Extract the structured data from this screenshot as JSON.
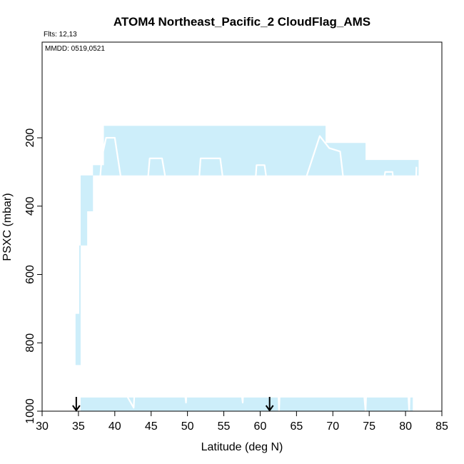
{
  "chart_data": {
    "type": "area",
    "title": "ATOM4 Northeast_Pacific_2 CloudFlag_AMS",
    "annotations": {
      "flights": "Flts: 12,13",
      "dates": "MMDD: 0519,0521"
    },
    "xlabel": "Latitude (deg N)",
    "ylabel": "PSXC (mbar)",
    "xlim": [
      30,
      85
    ],
    "ylim": [
      1000,
      -80
    ],
    "y_reversed": true,
    "grid": false,
    "x_ticks": [
      30,
      35,
      40,
      45,
      50,
      55,
      60,
      65,
      70,
      75,
      80,
      85
    ],
    "x_tick_labels": [
      "30",
      "35",
      "40",
      "45",
      "50",
      "55",
      "60",
      "65",
      "70",
      "75",
      "80",
      "85"
    ],
    "y_ticks": [
      200,
      400,
      600,
      800,
      1000
    ],
    "y_tick_labels": [
      "200",
      "400",
      "600",
      "800",
      "1000"
    ],
    "colors": {
      "cloud_fill": "#cdeefa",
      "flight_track": "#ffffff",
      "axis": "#000000"
    },
    "cloud_region": {
      "x": [
        34.6,
        35.1,
        35.1,
        36.2,
        36.2,
        37.0,
        37.0,
        38.5,
        38.5,
        69.0,
        69.0,
        74.5,
        74.5,
        81.8,
        81.8,
        35.3,
        35.3,
        34.6
      ],
      "y": [
        715,
        715,
        515,
        515,
        415,
        415,
        280,
        280,
        165,
        165,
        215,
        215,
        265,
        265,
        310,
        310,
        865,
        865
      ],
      "note_bottom": 1000
    },
    "flight_track": {
      "x": [
        35.0,
        36.0,
        37.2,
        38.2,
        38.8,
        40.0,
        41.0,
        41.8,
        42.6,
        43.6,
        44.8,
        46.5,
        47.8,
        48.8,
        49.8,
        50.8,
        51.8,
        54.5,
        55.5,
        56.6,
        57.6,
        58.6,
        59.5,
        60.6,
        61.6,
        62.6,
        63.5,
        68.2,
        69.5,
        71.0,
        72.0,
        73.4,
        74.5,
        75.3,
        77.2,
        78.2,
        79.2,
        80.5,
        81.5
      ],
      "y": [
        960,
        780,
        520,
        260,
        200,
        200,
        340,
        960,
        990,
        560,
        260,
        260,
        420,
        800,
        975,
        560,
        260,
        260,
        420,
        800,
        975,
        560,
        280,
        280,
        430,
        1000,
        500,
        195,
        230,
        240,
        420,
        740,
        1000,
        560,
        300,
        300,
        500,
        1000,
        285
      ]
    },
    "markers": [
      {
        "type": "down-arrow",
        "x": 34.7
      },
      {
        "type": "down-arrow",
        "x": 61.3
      }
    ]
  }
}
